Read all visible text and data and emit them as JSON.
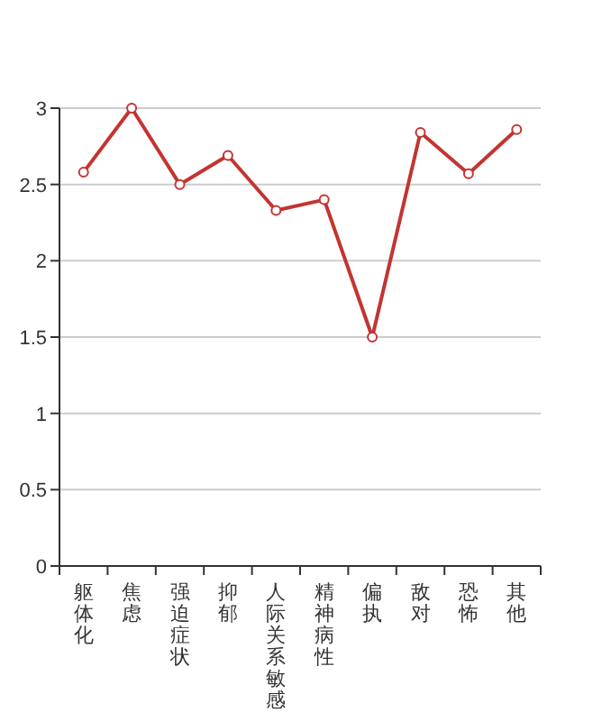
{
  "chart_data": {
    "type": "line",
    "categories": [
      "躯体化",
      "焦虑",
      "强迫症状",
      "抑郁",
      "人际关系敏感",
      "精神病性",
      "偏执",
      "敌对",
      "恐怖",
      "其他"
    ],
    "series": [
      {
        "color": "#c23531",
        "values": [
          2.58,
          3.0,
          2.5,
          2.69,
          2.33,
          2.4,
          1.5,
          2.84,
          2.57,
          2.86
        ]
      }
    ],
    "ylim": [
      0,
      3
    ],
    "yticks": [
      0,
      0.5,
      1,
      1.5,
      2,
      2.5,
      3
    ],
    "grid": "y",
    "marker": "circle",
    "line_style": "solid"
  }
}
